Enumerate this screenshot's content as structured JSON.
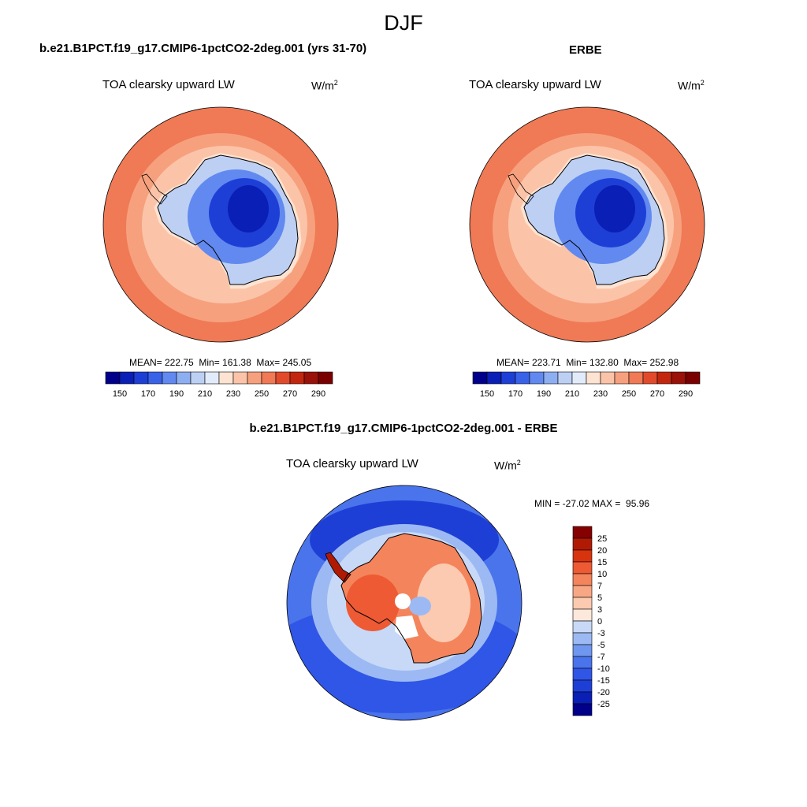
{
  "season": "DJF",
  "panels": {
    "model": {
      "header": "b.e21.B1PCT.f19_g17.CMIP6-1pctCO2-2deg.001 (yrs 31-70)",
      "variable": "TOA clearsky upward LW",
      "units_base": "W/m",
      "units_exp": "2",
      "stats": "MEAN= 222.75  Min= 161.38  Max= 245.05"
    },
    "obs": {
      "header": "ERBE",
      "variable": "TOA clearsky upward LW",
      "units_base": "W/m",
      "units_exp": "2",
      "stats": "MEAN= 223.71  Min= 132.80  Max= 252.98"
    },
    "diff": {
      "header": "b.e21.B1PCT.f19_g17.CMIP6-1pctCO2-2deg.001 - ERBE",
      "variable": "TOA clearsky upward LW",
      "units_base": "W/m",
      "units_exp": "2",
      "stats": "MIN = -27.02 MAX =  95.96"
    }
  },
  "chart_data": [
    {
      "type": "heatmap",
      "projection": "south polar stereographic",
      "title": "b.e21.B1PCT.f19_g17.CMIP6-1pctCO2-2deg.001 (yrs 31-70)",
      "variable": "TOA clearsky upward LW",
      "units": "W/m2",
      "mean": 222.75,
      "min": 161.38,
      "max": 245.05,
      "levels": [
        150,
        160,
        170,
        180,
        190,
        200,
        210,
        220,
        230,
        240,
        250,
        260,
        270,
        280,
        290
      ],
      "colorbar_labels": [
        "150",
        "170",
        "190",
        "210",
        "230",
        "250",
        "270",
        "290"
      ],
      "colors": [
        "#00008b",
        "#0a1fb5",
        "#1e3fd6",
        "#3a62e8",
        "#6189f0",
        "#8eaef2",
        "#bdd0f4",
        "#e2ebfa",
        "#fde3d2",
        "#fbc4a8",
        "#f7a07e",
        "#ef7a55",
        "#e14b2c",
        "#c2260f",
        "#991108",
        "#7a0000"
      ]
    },
    {
      "type": "heatmap",
      "projection": "south polar stereographic",
      "title": "ERBE",
      "variable": "TOA clearsky upward LW",
      "units": "W/m2",
      "mean": 223.71,
      "min": 132.8,
      "max": 252.98,
      "levels": [
        150,
        160,
        170,
        180,
        190,
        200,
        210,
        220,
        230,
        240,
        250,
        260,
        270,
        280,
        290
      ],
      "colorbar_labels": [
        "150",
        "170",
        "190",
        "210",
        "230",
        "250",
        "270",
        "290"
      ],
      "colors": [
        "#00008b",
        "#0a1fb5",
        "#1e3fd6",
        "#3a62e8",
        "#6189f0",
        "#8eaef2",
        "#bdd0f4",
        "#e2ebfa",
        "#fde3d2",
        "#fbc4a8",
        "#f7a07e",
        "#ef7a55",
        "#e14b2c",
        "#c2260f",
        "#991108",
        "#7a0000"
      ]
    },
    {
      "type": "heatmap",
      "projection": "south polar stereographic",
      "title": "b.e21.B1PCT.f19_g17.CMIP6-1pctCO2-2deg.001 - ERBE",
      "variable": "TOA clearsky upward LW",
      "units": "W/m2",
      "min": -27.02,
      "max": 95.96,
      "levels": [
        -25,
        -20,
        -15,
        -10,
        -7,
        -5,
        -3,
        0,
        3,
        5,
        7,
        10,
        15,
        20,
        25
      ],
      "colorbar_labels": [
        "-25",
        "-20",
        "-15",
        "-10",
        "-7",
        "-5",
        "-3",
        "0",
        "3",
        "5",
        "7",
        "10",
        "15",
        "20",
        "25"
      ],
      "colors": [
        "#00008b",
        "#0a1fb5",
        "#1e3fd6",
        "#2f56e6",
        "#4a74ec",
        "#7097f0",
        "#9cb9f3",
        "#c8d9f7",
        "#fde9dc",
        "#fbcab0",
        "#f8a784",
        "#f4845c",
        "#ed5a33",
        "#d8330f",
        "#b01a05",
        "#850000"
      ]
    }
  ]
}
